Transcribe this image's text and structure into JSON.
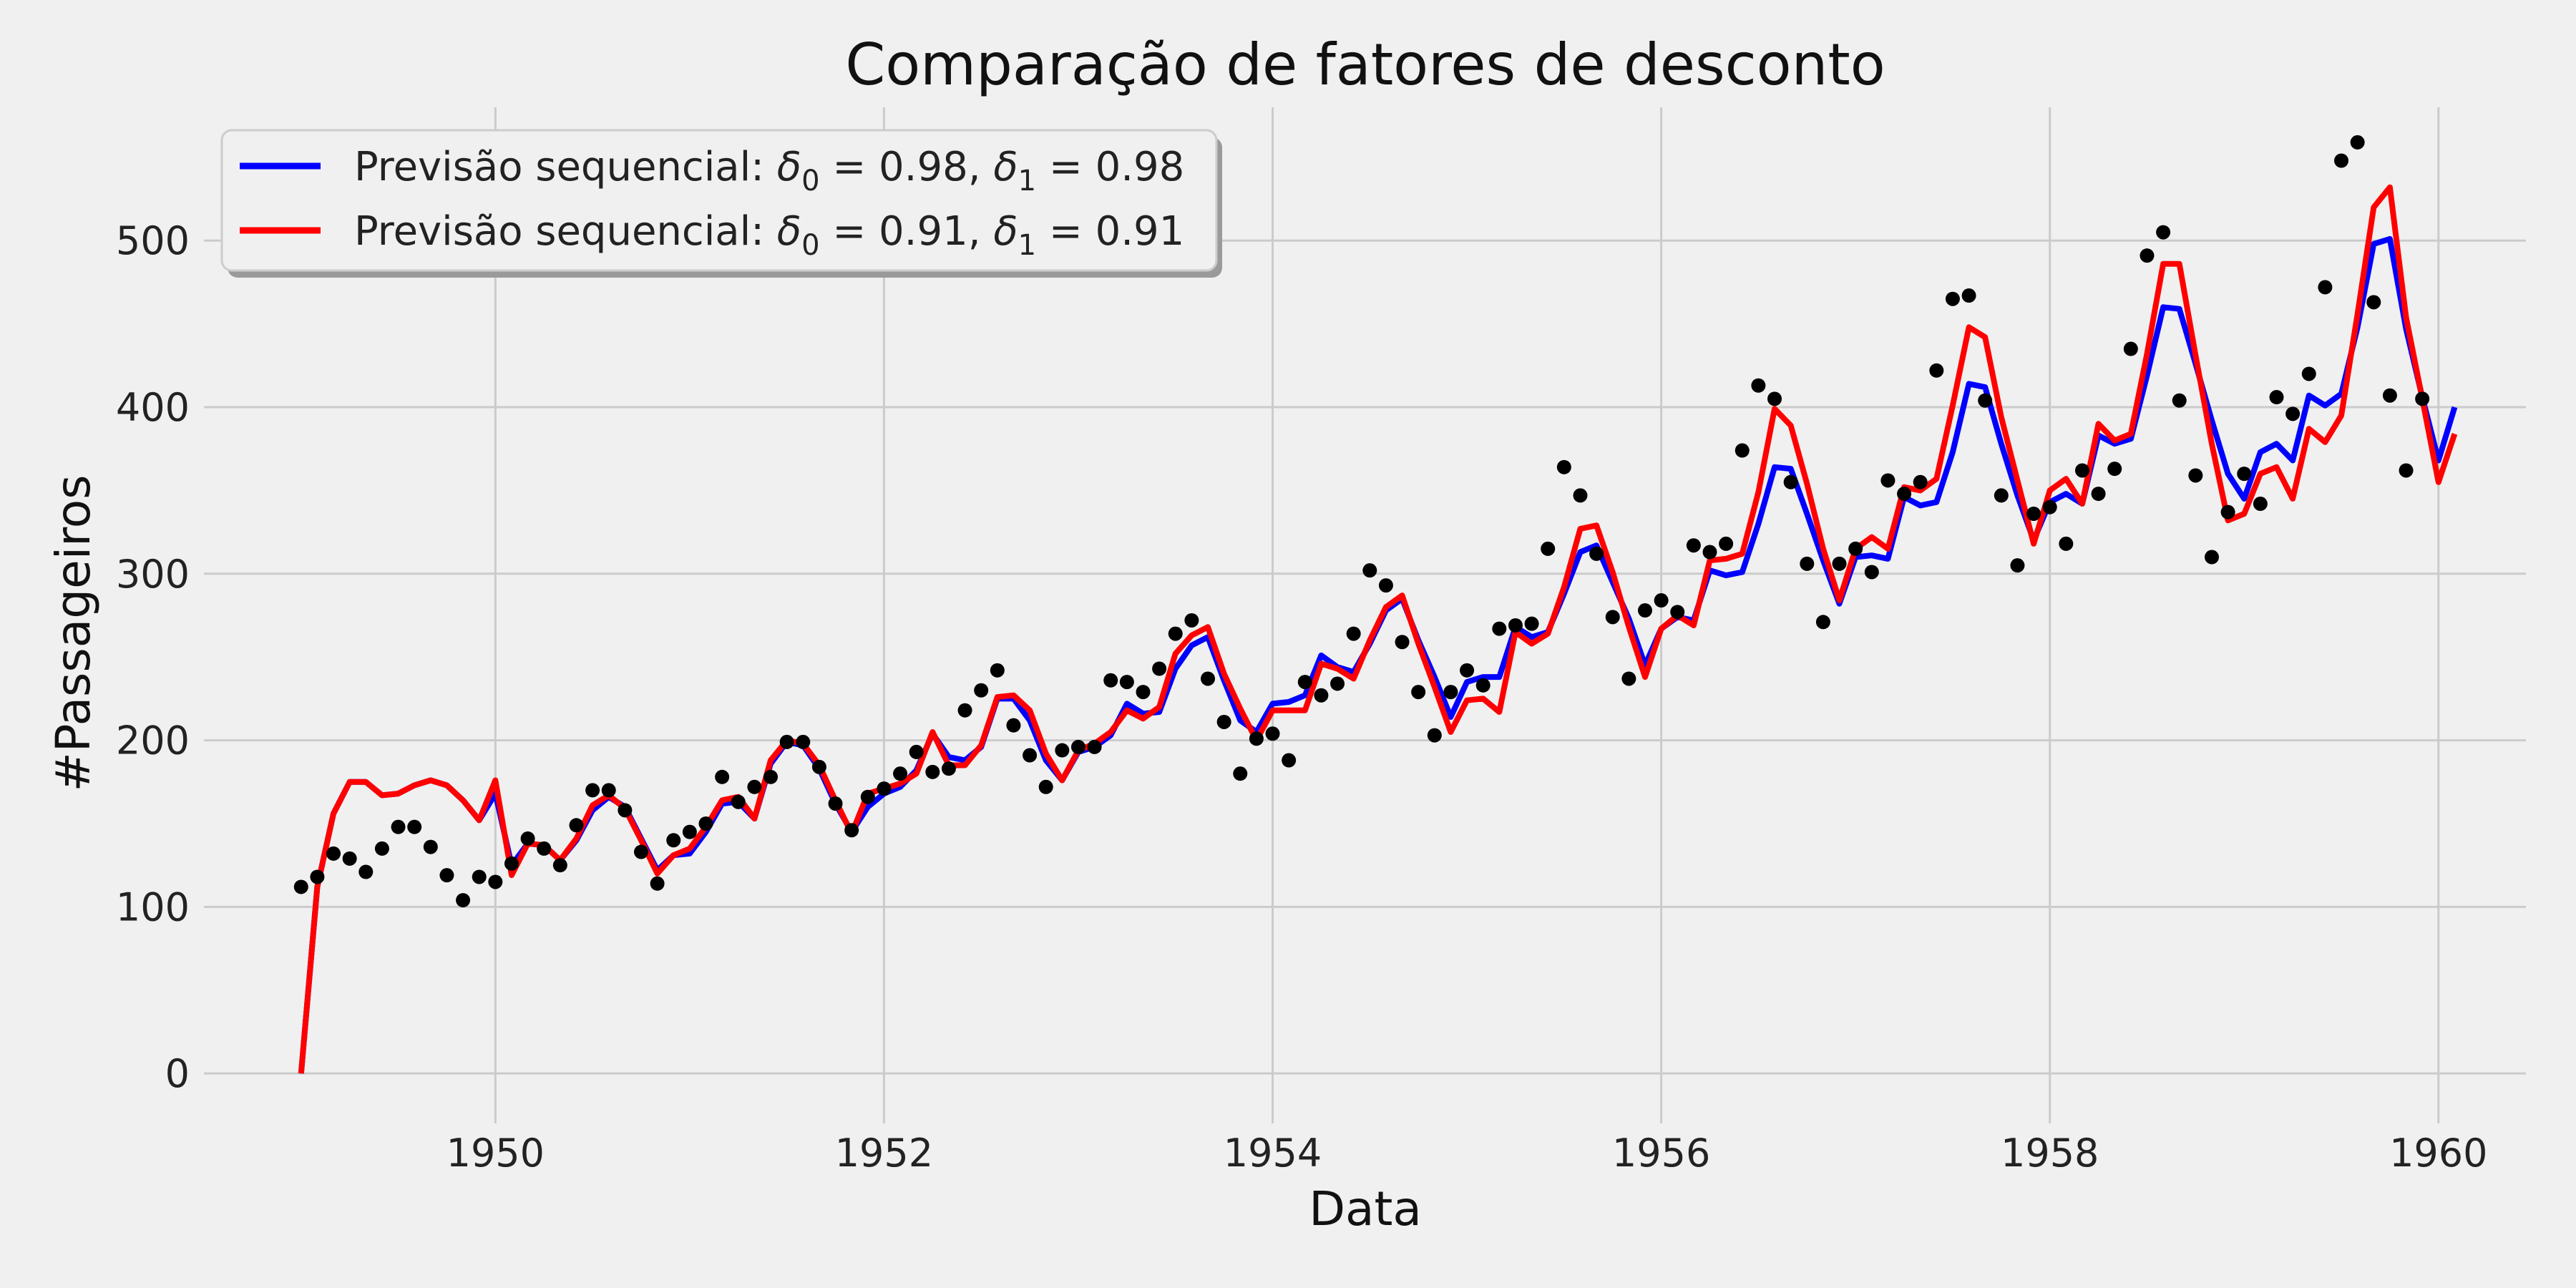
{
  "chart_data": {
    "type": "line",
    "title": "Comparação de fatores de desconto",
    "xlabel": "Data",
    "ylabel": "#Passageiros",
    "xlim": [
      1948.5,
      1960.45
    ],
    "ylim": [
      -30,
      580
    ],
    "xticks": [
      1950,
      1952,
      1954,
      1956,
      1958,
      1960
    ],
    "yticks": [
      0,
      100,
      200,
      300,
      400,
      500
    ],
    "grid": true,
    "legend_position": "top-left",
    "colors": {
      "background": "#f0f0f0",
      "grid": "#cbcbcb",
      "observed": "#000000"
    },
    "x_start_year": 1949,
    "x_step_months": 1,
    "observed": [
      112,
      118,
      132,
      129,
      121,
      135,
      148,
      148,
      136,
      119,
      104,
      118,
      115,
      126,
      141,
      135,
      125,
      149,
      170,
      170,
      158,
      133,
      114,
      140,
      145,
      150,
      178,
      163,
      172,
      178,
      199,
      199,
      184,
      162,
      146,
      166,
      171,
      180,
      193,
      181,
      183,
      218,
      230,
      242,
      209,
      191,
      172,
      194,
      196,
      196,
      236,
      235,
      229,
      243,
      264,
      272,
      237,
      211,
      180,
      201,
      204,
      188,
      235,
      227,
      234,
      264,
      302,
      293,
      259,
      229,
      203,
      229,
      242,
      233,
      267,
      269,
      270,
      315,
      364,
      347,
      312,
      274,
      237,
      278,
      284,
      277,
      317,
      313,
      318,
      374,
      413,
      405,
      355,
      306,
      271,
      306,
      315,
      301,
      356,
      348,
      355,
      422,
      465,
      467,
      404,
      347,
      305,
      336,
      340,
      318,
      362,
      348,
      363,
      435,
      491,
      505,
      404,
      359,
      310,
      337,
      360,
      342,
      406,
      396,
      420,
      472,
      548,
      559,
      463,
      407,
      362,
      405
    ],
    "series": [
      {
        "name": "Previsão sequencial: δ₀ = 0.98, δ₁ = 0.98",
        "legend_parts": {
          "prefix": "Previsão sequencial: ",
          "d0": "δ",
          "s0": "0",
          "eq0": " = 0.98, ",
          "d1": "δ",
          "s1": "1",
          "eq1": " = 0.98"
        },
        "color": "#0000ff",
        "values": [
          0,
          112,
          156,
          175,
          175,
          167,
          168,
          173,
          176,
          173,
          164,
          152,
          168,
          125,
          138,
          137,
          128,
          140,
          158,
          166,
          160,
          141,
          122,
          131,
          132,
          145,
          162,
          163,
          153,
          186,
          199,
          197,
          183,
          162,
          145,
          160,
          168,
          172,
          182,
          204,
          190,
          188,
          196,
          225,
          225,
          212,
          188,
          176,
          193,
          196,
          203,
          222,
          216,
          217,
          243,
          257,
          262,
          236,
          212,
          205,
          222,
          223,
          227,
          251,
          244,
          241,
          258,
          278,
          285,
          260,
          238,
          214,
          235,
          238,
          238,
          268,
          262,
          265,
          288,
          313,
          317,
          295,
          273,
          245,
          267,
          274,
          272,
          302,
          299,
          301,
          330,
          364,
          363,
          336,
          308,
          282,
          310,
          311,
          309,
          346,
          341,
          343,
          373,
          414,
          412,
          378,
          347,
          320,
          343,
          348,
          342,
          383,
          378,
          381,
          419,
          460,
          459,
          426,
          392,
          360,
          345,
          373,
          378,
          368,
          407,
          401,
          408,
          448,
          498,
          501,
          447,
          406,
          368,
          400
        ]
      },
      {
        "name": "Previsão sequencial: δ₀ = 0.91, δ₁ = 0.91",
        "legend_parts": {
          "prefix": "Previsão sequencial: ",
          "d0": "δ",
          "s0": "0",
          "eq0": " = 0.91, ",
          "d1": "δ",
          "s1": "1",
          "eq1": " = 0.91"
        },
        "color": "#ff0000",
        "values": [
          0,
          112,
          156,
          175,
          175,
          167,
          168,
          173,
          176,
          173,
          164,
          152,
          176,
          119,
          138,
          137,
          128,
          141,
          161,
          167,
          159,
          140,
          120,
          131,
          135,
          148,
          164,
          166,
          153,
          188,
          200,
          198,
          185,
          164,
          144,
          168,
          171,
          174,
          180,
          205,
          185,
          185,
          197,
          226,
          227,
          218,
          192,
          176,
          194,
          198,
          205,
          218,
          213,
          220,
          252,
          263,
          268,
          240,
          219,
          200,
          218,
          218,
          218,
          246,
          243,
          237,
          260,
          280,
          287,
          258,
          232,
          205,
          224,
          225,
          217,
          265,
          258,
          264,
          292,
          327,
          329,
          301,
          268,
          238,
          267,
          275,
          269,
          308,
          309,
          312,
          349,
          399,
          389,
          354,
          315,
          284,
          315,
          322,
          315,
          352,
          350,
          357,
          401,
          448,
          442,
          394,
          356,
          318,
          350,
          357,
          342,
          390,
          380,
          384,
          432,
          486,
          486,
          431,
          378,
          332,
          336,
          360,
          364,
          345,
          387,
          379,
          395,
          456,
          520,
          532,
          454,
          405,
          355,
          384
        ]
      }
    ]
  }
}
